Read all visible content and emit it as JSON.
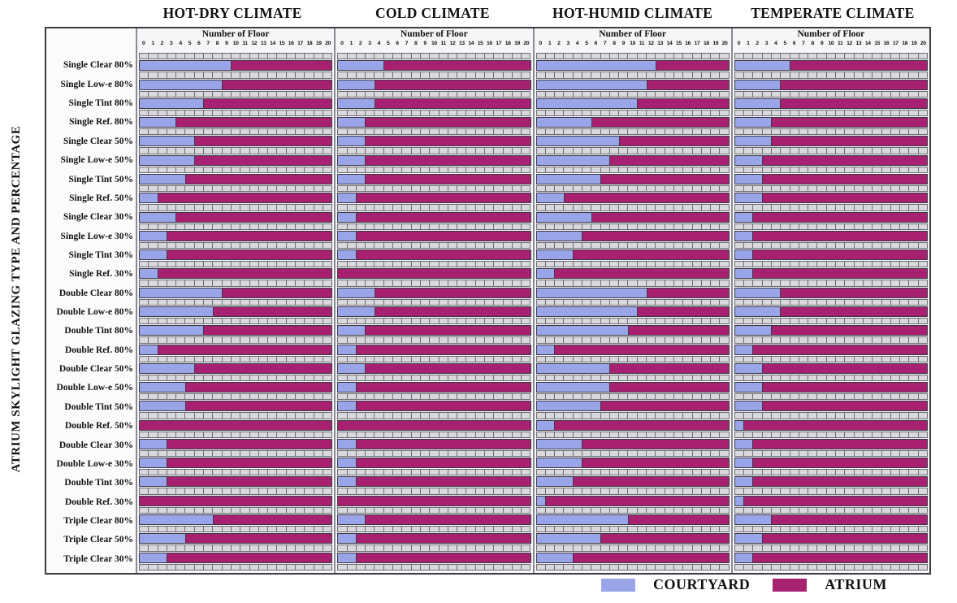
{
  "figure": {
    "y_axis_label": "ATRIUM SKYLIGHT GLAZING TYPE AND PERCENTAGE",
    "legend": [
      {
        "label": "COURTYARD",
        "color": "#9aa4e8"
      },
      {
        "label": "ATRIUM",
        "color": "#a82170"
      }
    ]
  },
  "chart_data": {
    "type": "bar",
    "orientation": "horizontal-stacked",
    "x_axis_title": "Number of Floor",
    "x_ticks": [
      0,
      1,
      2,
      3,
      4,
      5,
      6,
      7,
      8,
      9,
      10,
      11,
      12,
      13,
      14,
      15,
      16,
      17,
      18,
      19,
      20
    ],
    "xlim": [
      0,
      20
    ],
    "note": "Each row: blue = COURTYARD preferred up to the given floor count, magenta = ATRIUM for the remaining floors up to 20.",
    "categories": [
      "Single Clear 80%",
      "Single Low-e 80%",
      "Single Tint 80%",
      "Single Ref. 80%",
      "Single Clear 50%",
      "Single Low-e 50%",
      "Single Tint 50%",
      "Single Ref. 50%",
      "Single Clear 30%",
      "Single Low-e 30%",
      "Single Tint 30%",
      "Single Ref. 30%",
      "Double Clear 80%",
      "Double Low-e 80%",
      "Double Tint 80%",
      "Double Ref. 80%",
      "Double Clear 50%",
      "Double Low-e 50%",
      "Double Tint 50%",
      "Double Ref. 50%",
      "Double Clear 30%",
      "Double Low-e 30%",
      "Double Tint 30%",
      "Double Ref. 30%",
      "Triple Clear 80%",
      "Triple Clear 50%",
      "Triple Clear 30%"
    ],
    "panels": [
      {
        "title": "HOT-DRY CLIMATE",
        "courtyard_floors": [
          10,
          9,
          7,
          4,
          6,
          6,
          5,
          2,
          4,
          3,
          3,
          2,
          9,
          8,
          7,
          2,
          6,
          5,
          5,
          0,
          3,
          3,
          3,
          0,
          8,
          5,
          3
        ]
      },
      {
        "title": "COLD CLIMATE",
        "courtyard_floors": [
          5,
          4,
          4,
          3,
          3,
          3,
          3,
          2,
          2,
          2,
          2,
          0,
          4,
          4,
          3,
          2,
          3,
          2,
          2,
          0,
          2,
          2,
          2,
          0,
          3,
          2,
          2
        ]
      },
      {
        "title": "HOT-HUMID CLIMATE",
        "courtyard_floors": [
          13,
          12,
          11,
          6,
          9,
          8,
          7,
          3,
          6,
          5,
          4,
          2,
          12,
          11,
          10,
          2,
          8,
          8,
          7,
          2,
          5,
          5,
          4,
          1,
          10,
          7,
          4
        ]
      },
      {
        "title": "TEMPERATE CLIMATE",
        "courtyard_floors": [
          6,
          5,
          5,
          4,
          4,
          3,
          3,
          3,
          2,
          2,
          2,
          2,
          5,
          5,
          4,
          2,
          3,
          3,
          3,
          1,
          2,
          2,
          2,
          1,
          4,
          3,
          2
        ]
      }
    ],
    "colors": {
      "courtyard": "#9aa4e8",
      "atrium": "#a82170",
      "grid_cell": "#d9d8dd",
      "cell_border": "#6b6b75"
    }
  }
}
